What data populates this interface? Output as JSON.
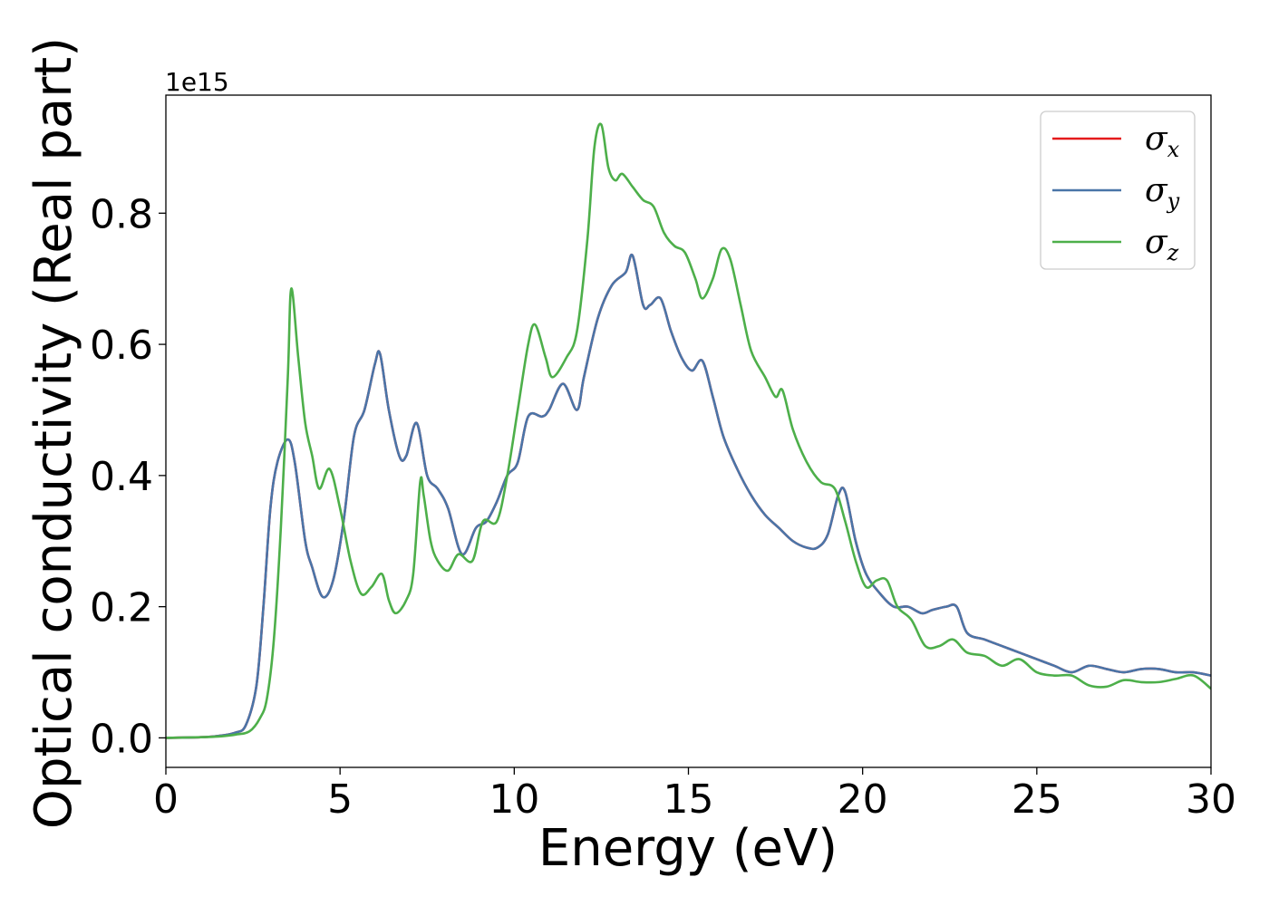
{
  "chart_data": {
    "type": "line",
    "xlabel": "Energy (eV)",
    "ylabel": "Optical conductivity (Real part)",
    "y_offset_label": "1e15",
    "xlim": [
      0,
      30
    ],
    "ylim": [
      -0.045,
      0.98
    ],
    "xticks": [
      0,
      5,
      10,
      15,
      20,
      25,
      30
    ],
    "xtick_labels": [
      "0",
      "5",
      "10",
      "15",
      "20",
      "25",
      "30"
    ],
    "yticks": [
      0.0,
      0.2,
      0.4,
      0.6,
      0.8
    ],
    "ytick_labels": [
      "0.0",
      "0.2",
      "0.4",
      "0.6",
      "0.8"
    ],
    "grid": false,
    "legend_position": "top-right",
    "series": [
      {
        "name": "σx",
        "legend_symbol": "σ",
        "legend_subscript": "x",
        "color": "#e41a1c",
        "x": [
          0,
          1,
          1.5,
          2.0,
          2.3,
          2.6,
          2.8,
          3.0,
          3.2,
          3.5,
          3.7,
          4.0,
          4.2,
          4.5,
          4.8,
          5.1,
          5.4,
          5.7,
          6.0,
          6.15,
          6.4,
          6.7,
          6.9,
          7.2,
          7.5,
          7.8,
          8.1,
          8.5,
          8.9,
          9.2,
          9.5,
          9.8,
          10.1,
          10.4,
          10.8,
          11.0,
          11.4,
          11.8,
          12.0,
          12.4,
          12.8,
          13.2,
          13.4,
          13.7,
          13.9,
          14.2,
          14.5,
          14.8,
          15.1,
          15.4,
          15.7,
          16.0,
          16.4,
          16.8,
          17.2,
          17.6,
          18.0,
          18.4,
          18.7,
          19.0,
          19.3,
          19.5,
          19.8,
          20.1,
          20.5,
          20.9,
          21.3,
          21.7,
          22.0,
          22.4,
          22.7,
          23.0,
          23.5,
          24.0,
          24.5,
          25.0,
          25.5,
          26.0,
          26.5,
          27.0,
          27.5,
          28.0,
          28.5,
          29.0,
          29.5,
          30.0
        ],
        "y": [
          0.0,
          0.001,
          0.003,
          0.008,
          0.02,
          0.08,
          0.2,
          0.35,
          0.42,
          0.455,
          0.42,
          0.3,
          0.26,
          0.215,
          0.24,
          0.33,
          0.46,
          0.5,
          0.57,
          0.585,
          0.5,
          0.43,
          0.43,
          0.48,
          0.4,
          0.38,
          0.35,
          0.28,
          0.32,
          0.33,
          0.36,
          0.4,
          0.42,
          0.49,
          0.49,
          0.5,
          0.54,
          0.5,
          0.55,
          0.64,
          0.69,
          0.71,
          0.735,
          0.66,
          0.66,
          0.67,
          0.62,
          0.58,
          0.56,
          0.575,
          0.52,
          0.46,
          0.41,
          0.37,
          0.34,
          0.32,
          0.3,
          0.29,
          0.29,
          0.31,
          0.37,
          0.375,
          0.3,
          0.25,
          0.22,
          0.2,
          0.2,
          0.19,
          0.195,
          0.2,
          0.2,
          0.16,
          0.15,
          0.14,
          0.13,
          0.12,
          0.11,
          0.1,
          0.11,
          0.105,
          0.1,
          0.105,
          0.105,
          0.1,
          0.1,
          0.095
        ]
      },
      {
        "name": "σy",
        "legend_symbol": "σ",
        "legend_subscript": "y",
        "color": "#4a75a8",
        "x": [
          0,
          1,
          1.5,
          2.0,
          2.3,
          2.6,
          2.8,
          3.0,
          3.2,
          3.5,
          3.7,
          4.0,
          4.2,
          4.5,
          4.8,
          5.1,
          5.4,
          5.7,
          6.0,
          6.15,
          6.4,
          6.7,
          6.9,
          7.2,
          7.5,
          7.8,
          8.1,
          8.5,
          8.9,
          9.2,
          9.5,
          9.8,
          10.1,
          10.4,
          10.8,
          11.0,
          11.4,
          11.8,
          12.0,
          12.4,
          12.8,
          13.2,
          13.4,
          13.7,
          13.9,
          14.2,
          14.5,
          14.8,
          15.1,
          15.4,
          15.7,
          16.0,
          16.4,
          16.8,
          17.2,
          17.6,
          18.0,
          18.4,
          18.7,
          19.0,
          19.3,
          19.5,
          19.8,
          20.1,
          20.5,
          20.9,
          21.3,
          21.7,
          22.0,
          22.4,
          22.7,
          23.0,
          23.5,
          24.0,
          24.5,
          25.0,
          25.5,
          26.0,
          26.5,
          27.0,
          27.5,
          28.0,
          28.5,
          29.0,
          29.5,
          30.0
        ],
        "y": [
          0.0,
          0.001,
          0.003,
          0.008,
          0.02,
          0.08,
          0.2,
          0.35,
          0.42,
          0.455,
          0.42,
          0.3,
          0.26,
          0.215,
          0.24,
          0.33,
          0.46,
          0.5,
          0.57,
          0.585,
          0.5,
          0.43,
          0.43,
          0.48,
          0.4,
          0.38,
          0.35,
          0.28,
          0.32,
          0.33,
          0.36,
          0.4,
          0.42,
          0.49,
          0.49,
          0.5,
          0.54,
          0.5,
          0.55,
          0.64,
          0.69,
          0.71,
          0.735,
          0.66,
          0.66,
          0.67,
          0.62,
          0.58,
          0.56,
          0.575,
          0.52,
          0.46,
          0.41,
          0.37,
          0.34,
          0.32,
          0.3,
          0.29,
          0.29,
          0.31,
          0.37,
          0.375,
          0.3,
          0.25,
          0.22,
          0.2,
          0.2,
          0.19,
          0.195,
          0.2,
          0.2,
          0.16,
          0.15,
          0.14,
          0.13,
          0.12,
          0.11,
          0.1,
          0.11,
          0.105,
          0.1,
          0.105,
          0.105,
          0.1,
          0.1,
          0.095
        ]
      },
      {
        "name": "σz",
        "legend_symbol": "σ",
        "legend_subscript": "z",
        "color": "#4daf4a",
        "x": [
          0,
          1,
          1.5,
          2.0,
          2.4,
          2.7,
          2.9,
          3.1,
          3.3,
          3.5,
          3.6,
          3.8,
          4.0,
          4.2,
          4.4,
          4.7,
          5.0,
          5.3,
          5.6,
          5.9,
          6.2,
          6.4,
          6.6,
          6.9,
          7.1,
          7.3,
          7.4,
          7.6,
          7.8,
          8.1,
          8.4,
          8.8,
          9.1,
          9.5,
          9.8,
          10.1,
          10.4,
          10.6,
          10.9,
          11.1,
          11.5,
          11.8,
          12.1,
          12.3,
          12.5,
          12.7,
          12.9,
          13.1,
          13.4,
          13.7,
          14.0,
          14.3,
          14.6,
          14.9,
          15.2,
          15.4,
          15.7,
          15.95,
          16.2,
          16.5,
          16.8,
          17.2,
          17.5,
          17.7,
          18.0,
          18.4,
          18.8,
          19.2,
          19.5,
          19.8,
          20.1,
          20.4,
          20.7,
          21.0,
          21.4,
          21.8,
          22.2,
          22.6,
          23.0,
          23.5,
          24.0,
          24.5,
          25.0,
          25.5,
          26.0,
          26.5,
          27.0,
          27.5,
          28.0,
          28.5,
          29.0,
          29.5,
          30.0
        ],
        "y": [
          0.0,
          0.001,
          0.002,
          0.005,
          0.01,
          0.03,
          0.06,
          0.15,
          0.32,
          0.55,
          0.685,
          0.58,
          0.48,
          0.43,
          0.38,
          0.41,
          0.35,
          0.27,
          0.22,
          0.23,
          0.25,
          0.21,
          0.19,
          0.21,
          0.25,
          0.39,
          0.37,
          0.3,
          0.27,
          0.255,
          0.28,
          0.27,
          0.33,
          0.33,
          0.4,
          0.5,
          0.6,
          0.63,
          0.58,
          0.55,
          0.58,
          0.62,
          0.76,
          0.9,
          0.935,
          0.87,
          0.85,
          0.86,
          0.84,
          0.82,
          0.81,
          0.77,
          0.75,
          0.74,
          0.7,
          0.67,
          0.7,
          0.745,
          0.73,
          0.66,
          0.59,
          0.55,
          0.52,
          0.53,
          0.47,
          0.42,
          0.39,
          0.38,
          0.33,
          0.27,
          0.23,
          0.24,
          0.24,
          0.2,
          0.18,
          0.14,
          0.14,
          0.15,
          0.13,
          0.125,
          0.11,
          0.12,
          0.1,
          0.095,
          0.095,
          0.08,
          0.078,
          0.088,
          0.085,
          0.085,
          0.09,
          0.095,
          0.075
        ]
      }
    ]
  }
}
